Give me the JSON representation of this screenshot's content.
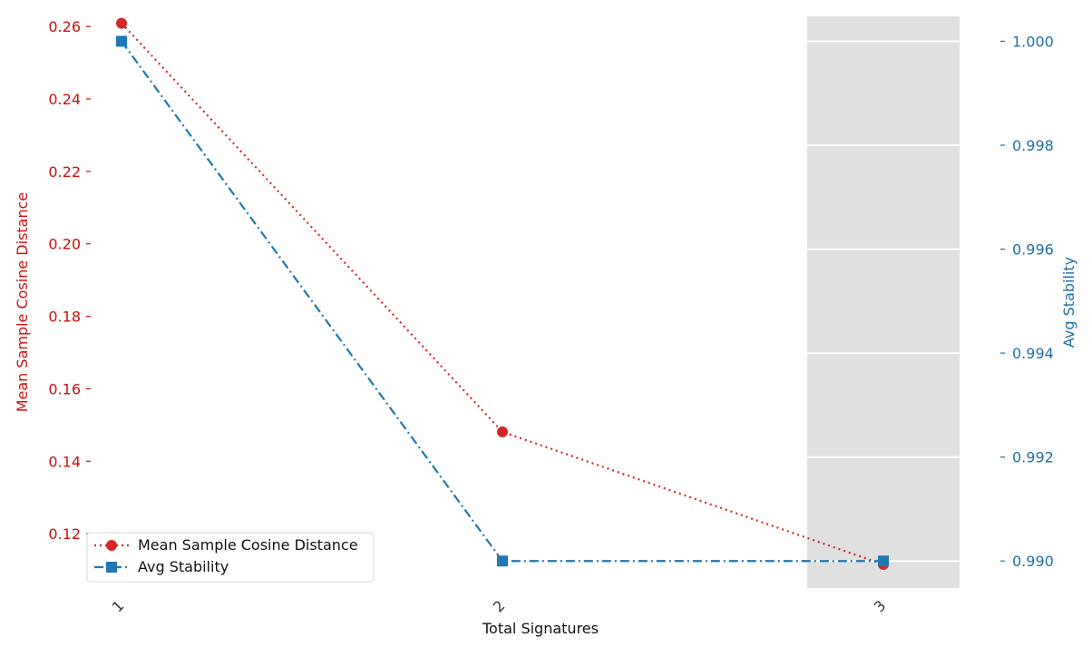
{
  "chart_data": {
    "type": "line",
    "title": "",
    "xlabel": "Total Signatures",
    "ylabel_left": "Mean Sample Cosine Distance",
    "ylabel_right": "Avg Stability",
    "x": [
      1,
      2,
      3
    ],
    "x_tick_labels": [
      "1",
      "2",
      "3"
    ],
    "left_axis": {
      "ylim": [
        0.105,
        0.2628
      ],
      "ticks": [
        0.12,
        0.14,
        0.16,
        0.18,
        0.2,
        0.22,
        0.24,
        0.26
      ],
      "tick_labels": [
        "0.12",
        "0.14",
        "0.16",
        "0.18",
        "0.20",
        "0.22",
        "0.24",
        "0.26"
      ],
      "color": "#cc1111"
    },
    "right_axis": {
      "ylim": [
        0.98948,
        1.00048
      ],
      "ticks": [
        0.99,
        0.992,
        0.994,
        0.996,
        0.998,
        1.0
      ],
      "tick_labels": [
        "0.990",
        "0.992",
        "0.994",
        "0.996",
        "0.998",
        "1.000"
      ],
      "color": "#1f6fa8"
    },
    "highlight_x": 3,
    "highlight_color": "#e0e0e0",
    "series": [
      {
        "name": "Mean Sample Cosine Distance",
        "axis": "left",
        "values": [
          0.2609,
          0.1481,
          0.1115
        ],
        "color": "#d62728",
        "line_style": "dotted",
        "marker": "circle"
      },
      {
        "name": "Avg Stability",
        "axis": "right",
        "values": [
          1.0,
          0.99,
          0.99
        ],
        "color": "#1f77b4",
        "line_style": "dashdot",
        "marker": "square"
      }
    ],
    "legend_position": "bottom-left",
    "grid": false
  }
}
